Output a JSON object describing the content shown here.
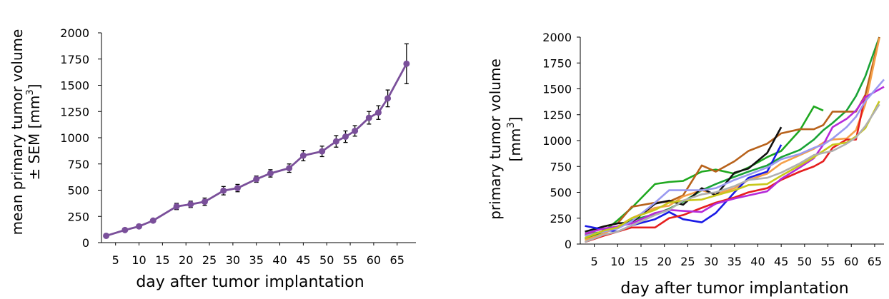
{
  "chart_data": [
    {
      "type": "line",
      "title": "",
      "xlabel": "day after tumor implantation",
      "ylabel_line1": "mean primary tumor volume",
      "ylabel_line2": "± SEM [mm",
      "ylabel_sup": "3",
      "ylabel_end": "]",
      "xlim": [
        2,
        69
      ],
      "ylim": [
        0,
        2000
      ],
      "xticks": [
        5,
        10,
        15,
        20,
        25,
        30,
        35,
        40,
        45,
        50,
        55,
        60,
        65
      ],
      "yticks": [
        0,
        250,
        500,
        750,
        1000,
        1250,
        1500,
        1750,
        2000
      ],
      "grid": false,
      "color": "#7a4f9a",
      "points": [
        {
          "x": 3,
          "y": 65,
          "err": 8
        },
        {
          "x": 7,
          "y": 120,
          "err": 10
        },
        {
          "x": 10,
          "y": 155,
          "err": 12
        },
        {
          "x": 13,
          "y": 210,
          "err": 14
        },
        {
          "x": 18,
          "y": 345,
          "err": 30
        },
        {
          "x": 21,
          "y": 365,
          "err": 30
        },
        {
          "x": 24,
          "y": 390,
          "err": 35
        },
        {
          "x": 28,
          "y": 495,
          "err": 40
        },
        {
          "x": 31,
          "y": 520,
          "err": 35
        },
        {
          "x": 35,
          "y": 605,
          "err": 30
        },
        {
          "x": 38,
          "y": 660,
          "err": 35
        },
        {
          "x": 42,
          "y": 710,
          "err": 40
        },
        {
          "x": 45,
          "y": 830,
          "err": 50
        },
        {
          "x": 49,
          "y": 870,
          "err": 50
        },
        {
          "x": 52,
          "y": 965,
          "err": 55
        },
        {
          "x": 54,
          "y": 1010,
          "err": 55
        },
        {
          "x": 56,
          "y": 1065,
          "err": 50
        },
        {
          "x": 59,
          "y": 1190,
          "err": 60
        },
        {
          "x": 61,
          "y": 1240,
          "err": 65
        },
        {
          "x": 63,
          "y": 1375,
          "err": 80
        },
        {
          "x": 67,
          "y": 1705,
          "err": 190
        }
      ]
    },
    {
      "type": "line",
      "title": "",
      "xlabel": "day after tumor implantation",
      "ylabel_line1": "primary tumor volume",
      "ylabel_line2": "[mm",
      "ylabel_sup": "3",
      "ylabel_end": "]",
      "xlim": [
        2,
        67
      ],
      "ylim": [
        0,
        2000
      ],
      "xticks": [
        5,
        10,
        15,
        20,
        25,
        30,
        35,
        40,
        45,
        50,
        55,
        60,
        65
      ],
      "yticks": [
        0,
        250,
        500,
        750,
        1000,
        1250,
        1500,
        1750,
        2000
      ],
      "grid": false,
      "series": [
        {
          "color": "#19a336",
          "x": [
            3,
            7,
            10,
            13,
            18,
            21,
            24,
            28,
            31,
            35,
            38,
            42,
            45,
            49,
            52,
            54,
            56,
            59,
            61,
            63,
            66
          ],
          "y": [
            90,
            120,
            170,
            230,
            290,
            340,
            410,
            520,
            580,
            650,
            700,
            760,
            840,
            910,
            1010,
            1100,
            1170,
            1290,
            1430,
            1620,
            2000
          ]
        },
        {
          "color": "#1fa81f",
          "x": [
            3,
            7,
            10,
            13,
            18,
            21,
            24,
            28,
            31,
            35,
            38,
            42,
            45,
            49,
            52,
            54
          ],
          "y": [
            50,
            120,
            230,
            350,
            580,
            600,
            610,
            700,
            720,
            680,
            740,
            840,
            900,
            1100,
            1330,
            1290
          ]
        },
        {
          "color": "#b8621b",
          "x": [
            3,
            7,
            10,
            13,
            18,
            21,
            24,
            28,
            31,
            35,
            38,
            42,
            45,
            49,
            52,
            54,
            56,
            59,
            61,
            63,
            66
          ],
          "y": [
            80,
            170,
            200,
            360,
            400,
            410,
            470,
            760,
            700,
            800,
            900,
            970,
            1070,
            1110,
            1110,
            1150,
            1280,
            1280,
            1280,
            1440,
            2000
          ]
        },
        {
          "color": "#f5a04a",
          "x": [
            3,
            7,
            10,
            13,
            18,
            21,
            24,
            28,
            31,
            35,
            38,
            42,
            45,
            49,
            52,
            54,
            56,
            59,
            61,
            63,
            66
          ],
          "y": [
            40,
            100,
            170,
            250,
            350,
            370,
            460,
            520,
            480,
            540,
            620,
            680,
            780,
            860,
            920,
            980,
            1010,
            1020,
            1100,
            1350,
            1990
          ]
        },
        {
          "color": "#111111",
          "x": [
            3,
            7,
            10,
            13,
            18,
            21,
            24,
            28,
            31,
            35,
            38,
            42,
            45
          ],
          "y": [
            120,
            170,
            200,
            210,
            390,
            420,
            380,
            540,
            470,
            690,
            730,
            880,
            1130
          ]
        },
        {
          "color": "#1a1ae6",
          "x": [
            3,
            7,
            10,
            13,
            18,
            21,
            24,
            28,
            31,
            35,
            38,
            42,
            45
          ],
          "y": [
            175,
            140,
            120,
            180,
            240,
            310,
            240,
            210,
            300,
            500,
            640,
            700,
            960
          ]
        },
        {
          "color": "#e61e1e",
          "x": [
            3,
            7,
            10,
            13,
            18,
            21,
            24,
            28,
            31,
            35,
            38,
            42,
            45,
            49,
            52,
            54,
            56,
            59,
            61,
            63
          ],
          "y": [
            20,
            80,
            120,
            160,
            160,
            250,
            280,
            350,
            400,
            450,
            500,
            540,
            620,
            700,
            750,
            800,
            930,
            1010,
            1010,
            1440
          ]
        },
        {
          "color": "#b52ad9",
          "x": [
            3,
            7,
            10,
            13,
            18,
            21,
            24,
            28,
            31,
            35,
            38,
            42,
            45,
            49,
            52,
            54,
            56,
            59,
            61,
            63,
            67
          ],
          "y": [
            100,
            150,
            170,
            200,
            300,
            330,
            320,
            310,
            390,
            440,
            470,
            510,
            630,
            740,
            830,
            960,
            1130,
            1210,
            1290,
            1420,
            1520
          ]
        },
        {
          "color": "#9a9af0",
          "x": [
            3,
            7,
            10,
            13,
            18,
            21,
            24,
            28,
            31,
            35,
            38,
            42,
            45,
            49,
            52,
            54,
            56,
            59,
            61,
            63,
            67
          ],
          "y": [
            80,
            120,
            150,
            220,
            400,
            520,
            520,
            520,
            540,
            620,
            670,
            740,
            820,
            870,
            930,
            960,
            1020,
            1130,
            1230,
            1380,
            1590
          ]
        },
        {
          "color": "#c8c81a",
          "x": [
            3,
            7,
            10,
            13,
            18,
            21,
            24,
            28,
            31,
            35,
            38,
            42,
            45,
            49,
            52,
            54,
            56,
            59,
            61,
            63,
            66
          ],
          "y": [
            60,
            130,
            160,
            250,
            330,
            400,
            420,
            430,
            470,
            520,
            570,
            580,
            660,
            760,
            840,
            900,
            960,
            980,
            1040,
            1120,
            1380
          ]
        },
        {
          "color": "#b0b0b0",
          "x": [
            3,
            7,
            10,
            13,
            18,
            21,
            24,
            28,
            31,
            35,
            38,
            42,
            45,
            49,
            52,
            54,
            56,
            59,
            61,
            63,
            66
          ],
          "y": [
            20,
            90,
            120,
            180,
            280,
            330,
            420,
            480,
            500,
            560,
            620,
            640,
            690,
            780,
            860,
            880,
            900,
            970,
            1030,
            1140,
            1350
          ]
        }
      ]
    }
  ]
}
